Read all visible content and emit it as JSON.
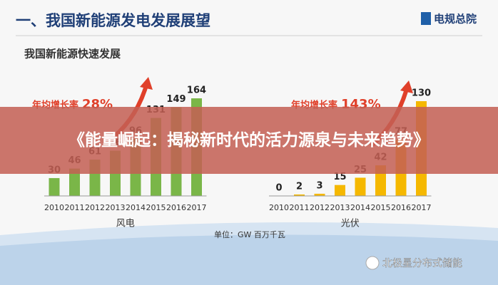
{
  "header": {
    "title": "一、我国新能源发电发展展望",
    "logo": "电规总院"
  },
  "subtitle": "我国新能源快速发展",
  "chart_data": [
    {
      "type": "bar",
      "categories": [
        "2010",
        "2011",
        "2012",
        "2013",
        "2014",
        "2015",
        "2016",
        "2017"
      ],
      "values": [
        30,
        46,
        61,
        76,
        96,
        131,
        149,
        164
      ],
      "color": "#7ab648",
      "annotation": {
        "label": "年均增长率",
        "value": "28%"
      },
      "xlabel": "风电"
    },
    {
      "type": "bar",
      "categories": [
        "2010",
        "2011",
        "2012",
        "2013",
        "2014",
        "2015",
        "2016",
        "2017"
      ],
      "values": [
        0,
        2,
        3,
        15,
        25,
        42,
        77,
        130
      ],
      "color": "#f5b800",
      "annotation": {
        "label": "年均增长率",
        "value": "143%"
      },
      "xlabel": "光伏"
    }
  ],
  "unit": "单位：GW 百万千瓦",
  "banner": "《能量崛起：揭秘新时代的活力源泉与未来趋势》",
  "watermark": "北极星分布式储能"
}
